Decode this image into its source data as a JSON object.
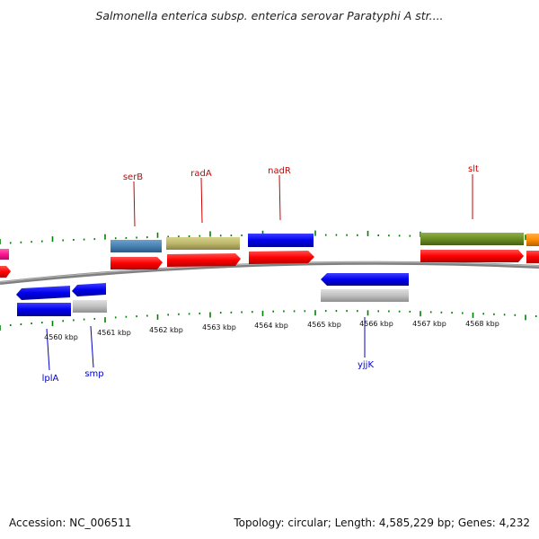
{
  "title": "Salmonella enterica subsp. enterica serovar Paratyphi A str....",
  "footer": {
    "accession": "Accession: NC_006511",
    "summary": "Topology: circular; Length: 4,585,229 bp; Genes: 4,232"
  },
  "positions": [
    "4560 kbp",
    "4561 kbp",
    "4562 kbp",
    "4563 kbp",
    "4564 kbp",
    "4565 kbp",
    "4566 kbp",
    "4567 kbp",
    "4568 kbp"
  ],
  "labels": {
    "serB": "serB",
    "radA": "radA",
    "nadR": "nadR",
    "slt": "slt",
    "lplA": "lplA",
    "smp": "smp",
    "yjjK": "yjjK"
  },
  "colors": {
    "forward_label": "#cc0000",
    "reverse_label": "#0000cc",
    "cds": "#ff0000",
    "blue_gene": "#0000ee",
    "steel_gene": "#4682b4",
    "khaki_gene": "#bdb76b",
    "olive_gene": "#6b8e23",
    "orange_gene": "#ff8c00",
    "grey_gene": "#c0c0c0",
    "pink_gene": "#ff1493",
    "ticks": "#008000",
    "backbone": "#808080"
  }
}
